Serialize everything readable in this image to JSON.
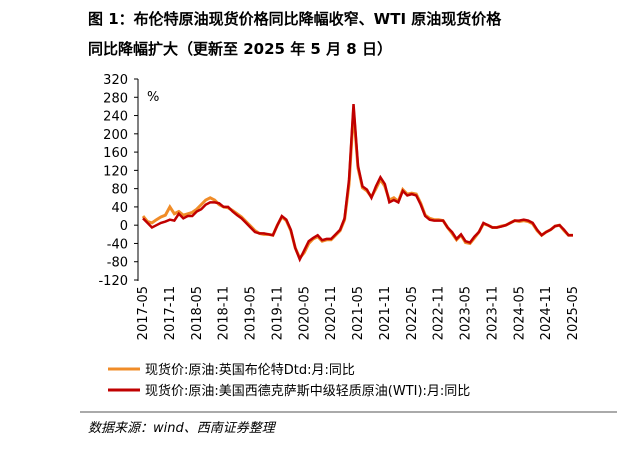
{
  "chart_data": {
    "type": "line",
    "title": "图 1：布伦特原油现货价格同比降幅收窄、WTI 原油现货价格",
    "subtitle": "同比降幅扩大（更新至 2025 年 5 月 8 日）",
    "y_unit": "%",
    "source": "数据来源：wind、西南证券整理",
    "categories": [
      "2017-05",
      null,
      null,
      null,
      null,
      null,
      "2017-11",
      null,
      null,
      null,
      null,
      null,
      "2018-05",
      null,
      null,
      null,
      null,
      null,
      "2018-11",
      null,
      null,
      null,
      null,
      null,
      "2019-05",
      null,
      null,
      null,
      null,
      null,
      "2019-11",
      null,
      null,
      null,
      null,
      null,
      "2020-05",
      null,
      null,
      null,
      null,
      null,
      "2020-11",
      null,
      null,
      null,
      null,
      null,
      "2021-05",
      null,
      null,
      null,
      null,
      null,
      "2021-11",
      null,
      null,
      null,
      null,
      null,
      "2022-05",
      null,
      null,
      null,
      null,
      null,
      "2022-11",
      null,
      null,
      null,
      null,
      null,
      "2023-05",
      null,
      null,
      null,
      null,
      null,
      "2023-11",
      null,
      null,
      null,
      null,
      null,
      "2024-05",
      null,
      null,
      null,
      null,
      null,
      "2024-11",
      null,
      null,
      null,
      null,
      null,
      "2025-05"
    ],
    "series": [
      {
        "name": "现货价:原油:英国布伦特Dtd:月:同比",
        "color": "#f08c28",
        "values": [
          20,
          8,
          5,
          12,
          18,
          22,
          40,
          25,
          30,
          22,
          25,
          28,
          35,
          45,
          55,
          60,
          55,
          45,
          40,
          38,
          32,
          25,
          18,
          8,
          -2,
          -12,
          -18,
          -20,
          -20,
          -22,
          0,
          18,
          10,
          -12,
          -50,
          -72,
          -60,
          -40,
          -30,
          -25,
          -35,
          -32,
          -32,
          -22,
          -12,
          12,
          90,
          250,
          125,
          82,
          75,
          62,
          80,
          100,
          85,
          55,
          60,
          52,
          78,
          68,
          70,
          68,
          48,
          22,
          15,
          12,
          12,
          10,
          -5,
          -18,
          -32,
          -22,
          -38,
          -40,
          -28,
          -15,
          3,
          0,
          -5,
          -5,
          -2,
          0,
          5,
          10,
          8,
          10,
          8,
          3,
          -12,
          -22,
          -15,
          -10,
          -2,
          0,
          -12,
          -22,
          -22
        ]
      },
      {
        "name": "现货价:原油:美国西德克萨斯中级轻质原油(WTI):月:同比",
        "color": "#c00000",
        "values": [
          15,
          5,
          -5,
          0,
          5,
          8,
          12,
          10,
          25,
          15,
          20,
          20,
          30,
          35,
          45,
          50,
          50,
          48,
          40,
          40,
          30,
          22,
          15,
          5,
          -5,
          -15,
          -18,
          -18,
          -20,
          -22,
          0,
          20,
          12,
          -10,
          -50,
          -75,
          -55,
          -35,
          -28,
          -22,
          -33,
          -30,
          -30,
          -20,
          -10,
          15,
          100,
          265,
          130,
          85,
          78,
          60,
          85,
          105,
          90,
          50,
          55,
          50,
          75,
          65,
          68,
          65,
          45,
          20,
          12,
          10,
          10,
          10,
          -5,
          -15,
          -30,
          -20,
          -35,
          -38,
          -25,
          -15,
          5,
          0,
          -5,
          -5,
          -3,
          0,
          5,
          10,
          10,
          12,
          10,
          5,
          -10,
          -22,
          -15,
          -10,
          -2,
          0,
          -10,
          -22,
          -22
        ]
      }
    ],
    "ylim": [
      -120,
      320
    ],
    "yticks": [
      -120,
      -80,
      -40,
      0,
      40,
      80,
      120,
      160,
      200,
      240,
      280,
      320
    ]
  }
}
